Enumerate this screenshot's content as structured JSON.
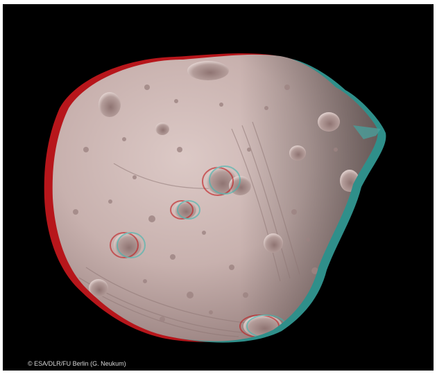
{
  "image": {
    "credit": "© ESA/DLR/FU Berlin (G. Neukum)"
  },
  "colors": {
    "background": "#000000",
    "anaglyph_red": "#c0181c",
    "anaglyph_cyan": "#3fb7b0",
    "surface": "#c9b4b2"
  }
}
